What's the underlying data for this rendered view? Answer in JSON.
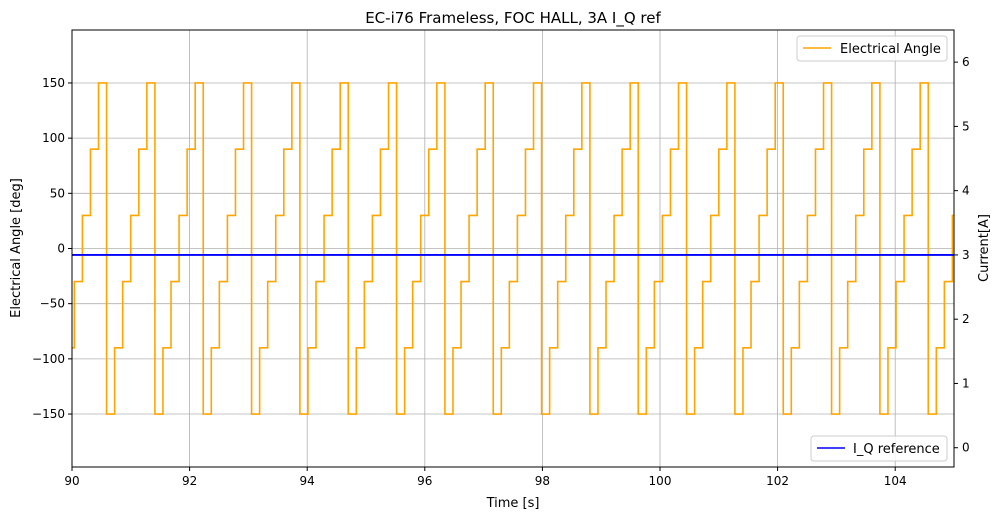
{
  "chart_data": {
    "type": "line",
    "title": "EC-i76 Frameless, FOC HALL, 3A I_Q ref",
    "xlabel": "Time [s]",
    "ylabel_left": "Electrical Angle [deg]",
    "ylabel_right": "Current[A]",
    "xlim": [
      90,
      105
    ],
    "ylim_left": [
      -198,
      198
    ],
    "ylim_right": [
      -0.3,
      6.5
    ],
    "x_ticks": [
      90,
      92,
      94,
      96,
      98,
      100,
      102,
      104
    ],
    "x_tick_labels": [
      "90",
      "92",
      "94",
      "96",
      "98",
      "100",
      "102",
      "104"
    ],
    "y_left_ticks": [
      -150,
      -100,
      -50,
      0,
      50,
      100,
      150
    ],
    "y_left_tick_labels": [
      "−150",
      "−100",
      "−50",
      "0",
      "50",
      "100",
      "150"
    ],
    "y_right_ticks": [
      0,
      1,
      2,
      3,
      4,
      5,
      6
    ],
    "y_right_tick_labels": [
      "0",
      "1",
      "2",
      "3",
      "4",
      "5",
      "6"
    ],
    "grid": true,
    "series": [
      {
        "name": "Electrical Angle",
        "axis": "left",
        "color": "#ffa500",
        "step_period_s": 0.822,
        "step_levels_deg": [
          -90,
          -30,
          30,
          90,
          150,
          -150
        ],
        "first_step_x": 90.04,
        "first_level_index": 0
      },
      {
        "name": "I_Q reference",
        "axis": "right",
        "color": "#0000ff",
        "x": [
          90,
          105
        ],
        "y": [
          3,
          3
        ]
      }
    ],
    "legends": [
      {
        "series": "Electrical Angle",
        "placement": "top-right"
      },
      {
        "series": "I_Q reference",
        "placement": "bottom-right"
      }
    ]
  }
}
